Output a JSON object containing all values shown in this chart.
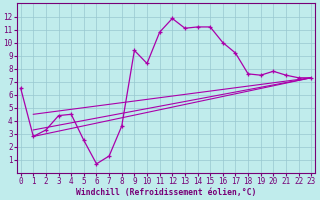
{
  "xlabel": "Windchill (Refroidissement éolien,°C)",
  "bg_color": "#c0ecec",
  "grid_color": "#98c8d0",
  "line_color": "#aa00aa",
  "line1_x": [
    0,
    1,
    2,
    3,
    4,
    5,
    6,
    7,
    8,
    9,
    10,
    11,
    12,
    13,
    14,
    15,
    16,
    17,
    18,
    19,
    20,
    21,
    22,
    23
  ],
  "line1_y": [
    6.5,
    2.8,
    3.3,
    4.4,
    4.5,
    2.5,
    0.7,
    1.3,
    3.6,
    9.4,
    8.4,
    10.8,
    11.85,
    11.1,
    11.2,
    11.2,
    10.0,
    9.2,
    7.6,
    7.5,
    7.8,
    7.5,
    7.3,
    7.3
  ],
  "line2_x": [
    1,
    23
  ],
  "line2_y": [
    2.8,
    7.3
  ],
  "line3_x": [
    1,
    23
  ],
  "line3_y": [
    3.3,
    7.3
  ],
  "line4_x": [
    1,
    23
  ],
  "line4_y": [
    4.5,
    7.3
  ],
  "ylim": [
    0,
    13
  ],
  "xlim": [
    -0.3,
    23.3
  ],
  "yticks": [
    1,
    2,
    3,
    4,
    5,
    6,
    7,
    8,
    9,
    10,
    11,
    12
  ],
  "xticks": [
    0,
    1,
    2,
    3,
    4,
    5,
    6,
    7,
    8,
    9,
    10,
    11,
    12,
    13,
    14,
    15,
    16,
    17,
    18,
    19,
    20,
    21,
    22,
    23
  ],
  "tick_fontsize": 5.5,
  "xlabel_fontsize": 5.8,
  "tick_color": "#770077",
  "spine_color": "#770077"
}
